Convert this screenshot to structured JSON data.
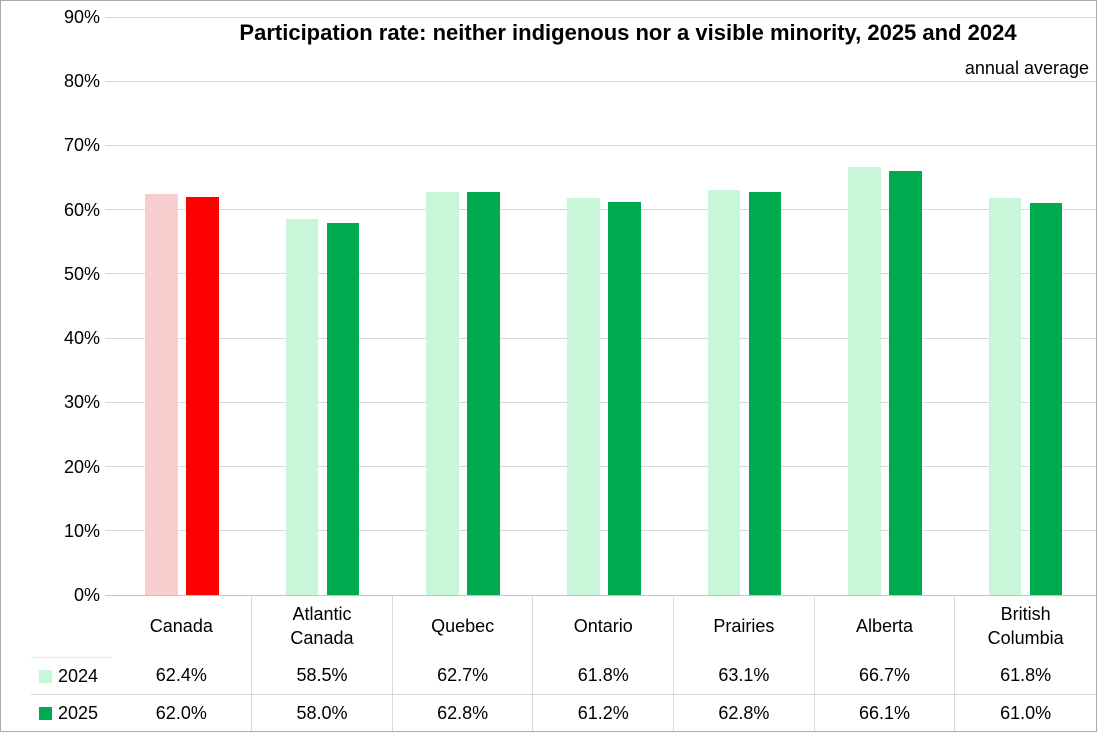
{
  "title": "Participation rate: neither indigenous nor a visible minority, 2025 and 2024",
  "subtitle": "annual average",
  "colors": {
    "series": [
      "#C7F6D9",
      "#00AB4F"
    ],
    "highlight_series": [
      "#F9CDCD",
      "#FF0000"
    ],
    "gridline": "#D9D9D9",
    "axis_line": "#C3C3C3",
    "table_border": "#D9D9D9",
    "frame_border": "#ABABAB"
  },
  "chart_data": {
    "type": "bar",
    "title": "Participation rate: neither indigenous nor a visible minority, 2025 and 2024",
    "subtitle": "annual average",
    "categories": [
      "Canada",
      "Atlantic Canada",
      "Quebec",
      "Ontario",
      "Prairies",
      "Alberta",
      "British Columbia"
    ],
    "series": [
      {
        "name": "2024",
        "values": [
          62.4,
          58.5,
          62.7,
          61.8,
          63.1,
          66.7,
          61.8
        ]
      },
      {
        "name": "2025",
        "values": [
          62.0,
          58.0,
          62.8,
          61.2,
          62.8,
          66.1,
          61.0
        ]
      }
    ],
    "xlabel": "",
    "ylabel": "",
    "ylim": [
      0,
      90
    ],
    "ytick_step": 10,
    "ytick_labels": [
      "0%",
      "10%",
      "20%",
      "30%",
      "40%",
      "50%",
      "60%",
      "70%",
      "80%",
      "90%"
    ],
    "grid": true,
    "legend_position": "data-table-left",
    "highlight_category_index": 0
  },
  "table": {
    "columns": [
      "Canada",
      "Atlantic Canada",
      "Quebec",
      "Ontario",
      "Prairies",
      "Alberta",
      "British Columbia"
    ],
    "rows": [
      [
        "62.4%",
        "58.5%",
        "62.7%",
        "61.8%",
        "63.1%",
        "66.7%",
        "61.8%"
      ],
      [
        "62.0%",
        "58.0%",
        "62.8%",
        "61.2%",
        "62.8%",
        "66.1%",
        "61.0%"
      ]
    ]
  }
}
